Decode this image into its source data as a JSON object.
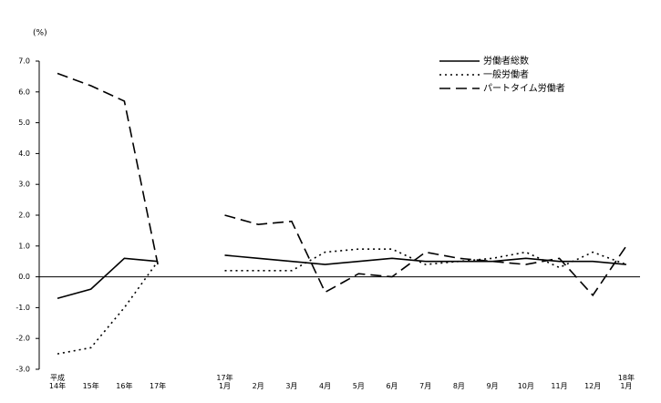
{
  "chart_data": {
    "type": "line",
    "y_label": "(%)",
    "categories": [
      "平成\n14年",
      "15年",
      "16年",
      "17年",
      null,
      "17年\n1月",
      "2月",
      "3月",
      "4月",
      "5月",
      "6月",
      "7月",
      "8月",
      "9月",
      "10月",
      "11月",
      "12月",
      "18年\n1月"
    ],
    "series": [
      {
        "name": "労働者総数",
        "color": "#000000",
        "dash": "solid",
        "values": [
          -0.7,
          -0.4,
          0.6,
          0.5,
          null,
          0.7,
          0.6,
          0.5,
          0.4,
          0.5,
          0.6,
          0.5,
          0.5,
          0.5,
          0.6,
          0.5,
          0.5,
          0.4
        ]
      },
      {
        "name": "一般労働者",
        "color": "#000000",
        "dash": "dotted",
        "values": [
          -2.5,
          -2.3,
          -1.0,
          0.5,
          null,
          0.2,
          0.2,
          0.2,
          0.8,
          0.9,
          0.9,
          0.4,
          0.5,
          0.6,
          0.8,
          0.3,
          0.8,
          0.4
        ]
      },
      {
        "name": "パートタイム労働者",
        "color": "#000000",
        "dash": "dashed",
        "values": [
          6.6,
          6.2,
          5.7,
          0.4,
          null,
          2.0,
          1.7,
          1.8,
          -0.5,
          0.1,
          0.0,
          0.8,
          0.6,
          0.5,
          0.4,
          0.6,
          -0.6,
          1.0
        ]
      }
    ],
    "ylim": [
      -3.0,
      7.0
    ],
    "yticks": [
      {
        "value": -3.0,
        "label": "-3.0"
      },
      {
        "value": -2.0,
        "label": "-2.0"
      },
      {
        "value": -1.0,
        "label": "-1.0"
      },
      {
        "value": 0.0,
        "label": "0.0"
      },
      {
        "value": 1.0,
        "label": "1.0"
      },
      {
        "value": 2.0,
        "label": "2.0"
      },
      {
        "value": 3.0,
        "label": "3.0"
      },
      {
        "value": 4.0,
        "label": "4.0"
      },
      {
        "value": 5.0,
        "label": "5.0"
      },
      {
        "value": 6.0,
        "label": "6.0"
      },
      {
        "value": 7.0,
        "label": "7.0"
      }
    ],
    "legend": "top-right"
  }
}
